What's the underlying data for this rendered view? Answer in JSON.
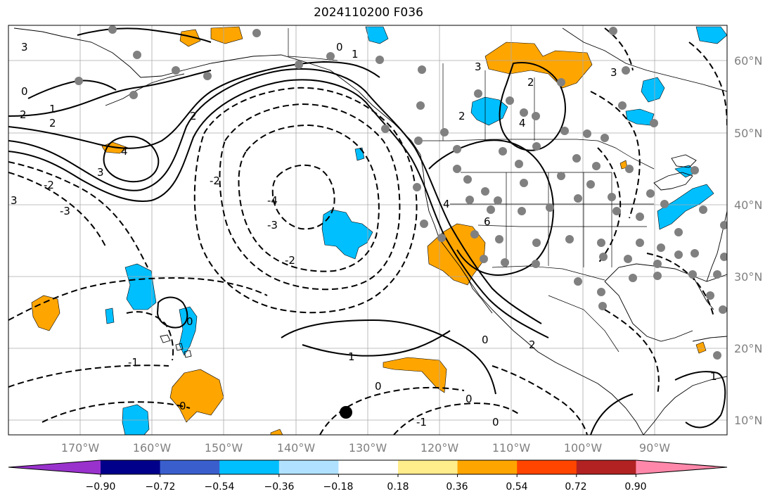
{
  "title": "2024110200 F036",
  "lon_ticks": [
    "170°W",
    "160°W",
    "150°W",
    "140°W",
    "130°W",
    "120°W",
    "110°W",
    "100°W",
    "90°W"
  ],
  "lat_ticks": [
    "60°N",
    "50°N",
    "40°N",
    "30°N",
    "20°N",
    "10°N"
  ],
  "colorbar": {
    "ticks": [
      "−0.90",
      "−0.72",
      "−0.54",
      "−0.36",
      "−0.18",
      "0.18",
      "0.36",
      "0.54",
      "0.72",
      "0.90"
    ],
    "colors": [
      "#9932cc",
      "#00008b",
      "#3a5fcd",
      "#00bfff",
      "#b0e2ff",
      "#ffffff",
      "#ffec8b",
      "#ffa500",
      "#ff4500",
      "#b22222",
      "#ff88aa"
    ]
  },
  "contour_labels": [
    "3",
    "0",
    "1",
    "2",
    "-3",
    "-4",
    "4",
    "-2",
    "-1",
    "6"
  ],
  "colors": {
    "land_line": "#000000",
    "grid": "#aaaaaa",
    "dots": "#808080",
    "shade_pos": "#ffa500",
    "shade_neg": "#00bfff"
  }
}
